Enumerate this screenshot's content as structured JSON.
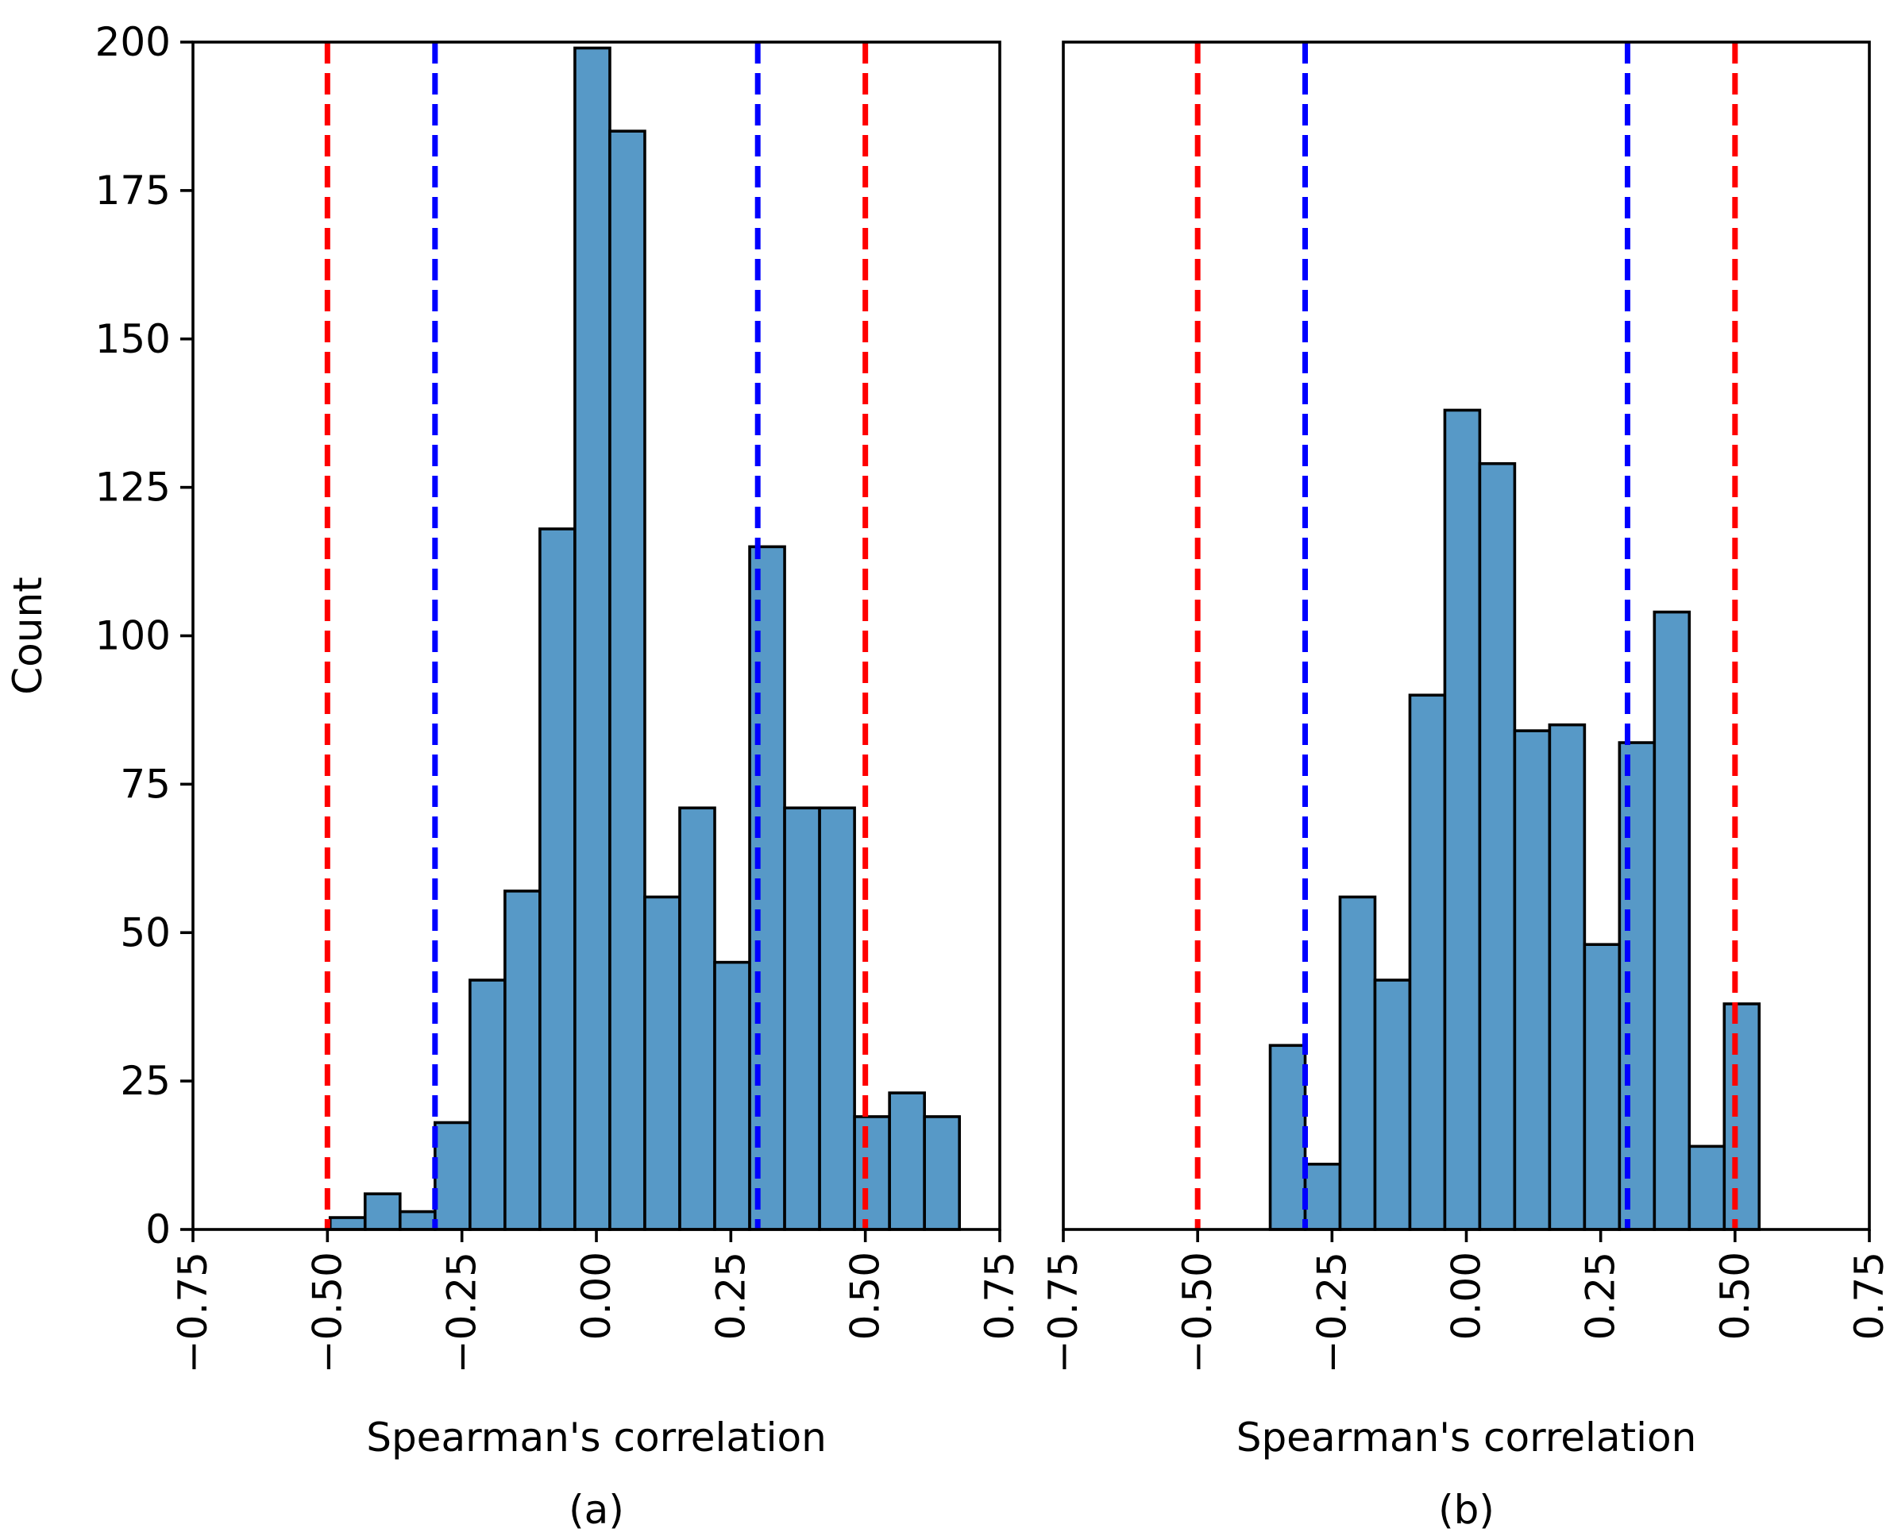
{
  "figure": {
    "ylabel": "Count",
    "bar_color": "#5799c7",
    "bar_edge_color": "#000000",
    "threshold_colors": {
      "strong": "#ff0000",
      "moderate": "#0000ff"
    }
  },
  "chart_data": [
    {
      "type": "bar",
      "caption": "(a)",
      "xlabel": "Spearman's correlation",
      "ylabel": "Count",
      "xlim": [
        -0.75,
        0.75
      ],
      "ylim": [
        0,
        200
      ],
      "xticks": [
        -0.75,
        -0.5,
        -0.25,
        0.0,
        0.25,
        0.5,
        0.75
      ],
      "xtick_labels": [
        "−0.75",
        "−0.50",
        "−0.25",
        "0.00",
        "0.25",
        "0.50",
        "0.75"
      ],
      "yticks": [
        0,
        25,
        50,
        75,
        100,
        125,
        150,
        175,
        200
      ],
      "ytick_labels": [
        "0",
        "25",
        "50",
        "75",
        "100",
        "125",
        "150",
        "175",
        "200"
      ],
      "grid": false,
      "bins": [
        {
          "x0": -0.495,
          "x1": -0.43,
          "count": 2
        },
        {
          "x0": -0.43,
          "x1": -0.365,
          "count": 6
        },
        {
          "x0": -0.365,
          "x1": -0.3,
          "count": 3
        },
        {
          "x0": -0.3,
          "x1": -0.235,
          "count": 18
        },
        {
          "x0": -0.235,
          "x1": -0.17,
          "count": 42
        },
        {
          "x0": -0.17,
          "x1": -0.105,
          "count": 57
        },
        {
          "x0": -0.105,
          "x1": -0.04,
          "count": 118
        },
        {
          "x0": -0.04,
          "x1": 0.025,
          "count": 199
        },
        {
          "x0": 0.025,
          "x1": 0.09,
          "count": 185
        },
        {
          "x0": 0.09,
          "x1": 0.155,
          "count": 56
        },
        {
          "x0": 0.155,
          "x1": 0.22,
          "count": 71
        },
        {
          "x0": 0.22,
          "x1": 0.285,
          "count": 45
        },
        {
          "x0": 0.285,
          "x1": 0.35,
          "count": 115
        },
        {
          "x0": 0.35,
          "x1": 0.415,
          "count": 71
        },
        {
          "x0": 0.415,
          "x1": 0.48,
          "count": 71
        },
        {
          "x0": 0.48,
          "x1": 0.545,
          "count": 19
        },
        {
          "x0": 0.545,
          "x1": 0.61,
          "count": 23
        },
        {
          "x0": 0.61,
          "x1": 0.675,
          "count": 19
        }
      ],
      "vlines": [
        {
          "x": -0.5,
          "color": "#ff0000",
          "style": "dashed"
        },
        {
          "x": -0.3,
          "color": "#0000ff",
          "style": "dashed"
        },
        {
          "x": 0.3,
          "color": "#0000ff",
          "style": "dashed"
        },
        {
          "x": 0.5,
          "color": "#ff0000",
          "style": "dashed"
        }
      ]
    },
    {
      "type": "bar",
      "caption": "(b)",
      "xlabel": "Spearman's correlation",
      "ylabel": "",
      "xlim": [
        -0.75,
        0.75
      ],
      "ylim": [
        0,
        200
      ],
      "xticks": [
        -0.75,
        -0.5,
        -0.25,
        0.0,
        0.25,
        0.5,
        0.75
      ],
      "xtick_labels": [
        "−0.75",
        "−0.50",
        "−0.25",
        "0.00",
        "0.25",
        "0.50",
        "0.75"
      ],
      "yticks": [],
      "ytick_labels": [],
      "grid": false,
      "bins": [
        {
          "x0": -0.365,
          "x1": -0.3,
          "count": 31
        },
        {
          "x0": -0.3,
          "x1": -0.235,
          "count": 11
        },
        {
          "x0": -0.235,
          "x1": -0.17,
          "count": 56
        },
        {
          "x0": -0.17,
          "x1": -0.105,
          "count": 42
        },
        {
          "x0": -0.105,
          "x1": -0.04,
          "count": 90
        },
        {
          "x0": -0.04,
          "x1": 0.025,
          "count": 138
        },
        {
          "x0": 0.025,
          "x1": 0.09,
          "count": 129
        },
        {
          "x0": 0.09,
          "x1": 0.155,
          "count": 84
        },
        {
          "x0": 0.155,
          "x1": 0.22,
          "count": 85
        },
        {
          "x0": 0.22,
          "x1": 0.285,
          "count": 48
        },
        {
          "x0": 0.285,
          "x1": 0.35,
          "count": 82
        },
        {
          "x0": 0.35,
          "x1": 0.415,
          "count": 104
        },
        {
          "x0": 0.415,
          "x1": 0.48,
          "count": 14
        },
        {
          "x0": 0.48,
          "x1": 0.545,
          "count": 38
        }
      ],
      "vlines": [
        {
          "x": -0.5,
          "color": "#ff0000",
          "style": "dashed"
        },
        {
          "x": -0.3,
          "color": "#0000ff",
          "style": "dashed"
        },
        {
          "x": 0.3,
          "color": "#0000ff",
          "style": "dashed"
        },
        {
          "x": 0.5,
          "color": "#ff0000",
          "style": "dashed"
        }
      ]
    }
  ]
}
